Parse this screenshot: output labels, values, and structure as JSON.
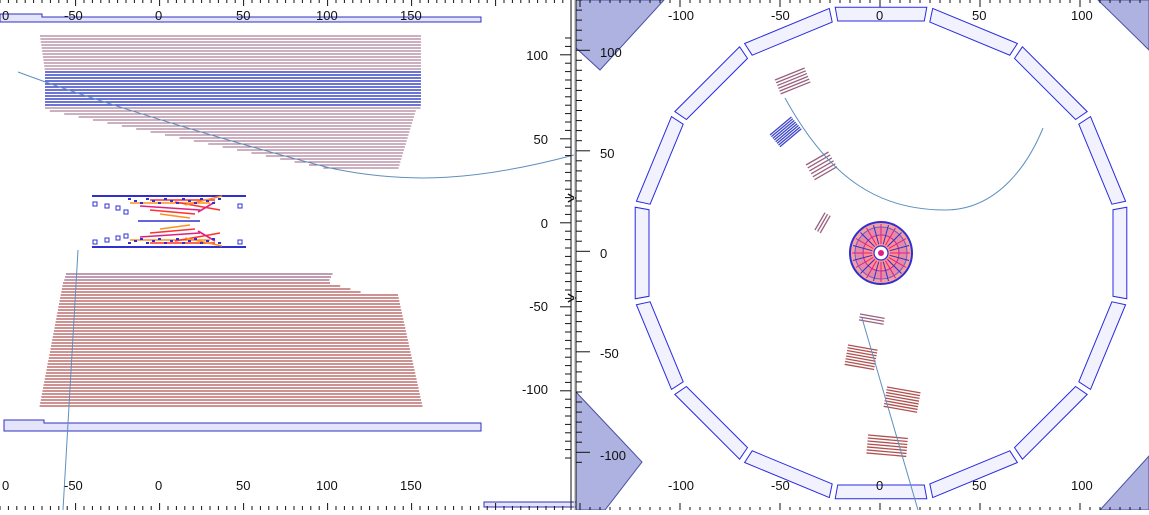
{
  "colors": {
    "background": "#ffffff",
    "panel_divider": "#cccccc",
    "axis": "#111111",
    "cryostat_fill": "#e4e4fa",
    "cryostat_stroke": "#3030c0",
    "layer_stroke": "#2a2ae0",
    "layer_fill": "#f2f2ff",
    "ecal_red": "#b05050",
    "ecal_light": "#9a6080",
    "ecal_blue": "#3c46c8",
    "track": "#5f8fbf",
    "corner_fill": "#aeb2e0",
    "corner_stroke": "#4a50a8",
    "tracker_red": "#ff3030",
    "tracker_pink": "#e02080",
    "tracker_orange": "#ff9020",
    "tracker_blue": "#3030d0"
  },
  "side_view": {
    "x_ticks_top": [
      "0",
      "-50",
      "0",
      "50",
      "100",
      "150"
    ],
    "x_ticks_bottom": [
      "0",
      "-50",
      "0",
      "50",
      "100",
      "150"
    ],
    "y_ticks": [
      "100",
      "50",
      "0",
      "-50",
      "-100"
    ]
  },
  "end_view": {
    "x_ticks_top": [
      "-100",
      "-50",
      "0",
      "50",
      "100"
    ],
    "x_ticks_bottom": [
      "-100",
      "-50",
      "0",
      "50",
      "100"
    ],
    "y_ticks": [
      "100",
      "50",
      "0",
      "-50",
      "-100"
    ]
  }
}
